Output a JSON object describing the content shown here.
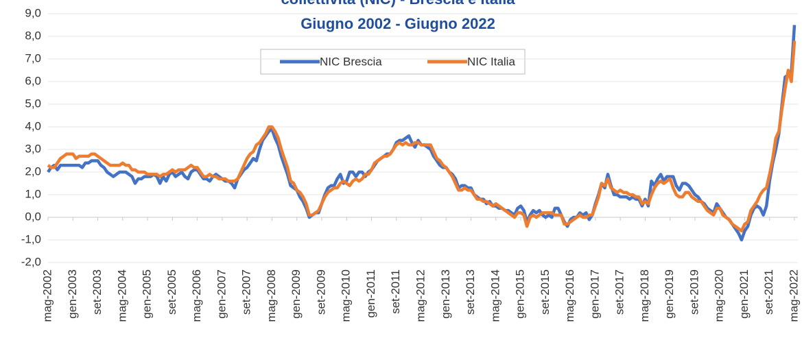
{
  "chart_data": {
    "type": "line",
    "title": "collettività (NIC) - Brescia e Italia",
    "subtitle": "Giugno 2002 - Giugno 2022",
    "categories": [
      "mag-2002",
      null,
      null,
      null,
      null,
      null,
      null,
      null,
      "gen-2003",
      null,
      null,
      null,
      null,
      null,
      null,
      null,
      "set-2003",
      null,
      null,
      null,
      null,
      null,
      null,
      null,
      "mag-2004",
      null,
      null,
      null,
      null,
      null,
      null,
      null,
      "gen-2005",
      null,
      null,
      null,
      null,
      null,
      null,
      null,
      "set-2005",
      null,
      null,
      null,
      null,
      null,
      null,
      null,
      "mag-2006",
      null,
      null,
      null,
      null,
      null,
      null,
      null,
      "gen-2007",
      null,
      null,
      null,
      null,
      null,
      null,
      null,
      "set-2007",
      null,
      null,
      null,
      null,
      null,
      null,
      null,
      "mag-2008",
      null,
      null,
      null,
      null,
      null,
      null,
      null,
      "gen-2009",
      null,
      null,
      null,
      null,
      null,
      null,
      null,
      "set-2009",
      null,
      null,
      null,
      null,
      null,
      null,
      null,
      "mag-2010",
      null,
      null,
      null,
      null,
      null,
      null,
      null,
      "gen-2011",
      null,
      null,
      null,
      null,
      null,
      null,
      null,
      "set-2011",
      null,
      null,
      null,
      null,
      null,
      null,
      null,
      "mag-2012",
      null,
      null,
      null,
      null,
      null,
      null,
      null,
      "gen-2013",
      null,
      null,
      null,
      null,
      null,
      null,
      null,
      "set-2013",
      null,
      null,
      null,
      null,
      null,
      null,
      null,
      "mag-2014",
      null,
      null,
      null,
      null,
      null,
      null,
      null,
      "gen-2015",
      null,
      null,
      null,
      null,
      null,
      null,
      null,
      "set-2015",
      null,
      null,
      null,
      null,
      null,
      null,
      null,
      "mag-2016",
      null,
      null,
      null,
      null,
      null,
      null,
      null,
      "gen-2017",
      null,
      null,
      null,
      null,
      null,
      null,
      null,
      "set-2017",
      null,
      null,
      null,
      null,
      null,
      null,
      null,
      "mag-2018",
      null,
      null,
      null,
      null,
      null,
      null,
      null,
      "gen-2019",
      null,
      null,
      null,
      null,
      null,
      null,
      null,
      "set-2019",
      null,
      null,
      null,
      null,
      null,
      null,
      null,
      "mag-2020",
      null,
      null,
      null,
      null,
      null,
      null,
      null,
      "gen-2021",
      null,
      null,
      null,
      null,
      null,
      null,
      null,
      "set-2021",
      null,
      null,
      null,
      null,
      null,
      null,
      null,
      "mag-2022"
    ],
    "series": [
      {
        "name": "NIC Brescia",
        "color": "#4472c4",
        "values": [
          2.0,
          2.2,
          2.3,
          2.1,
          2.3,
          2.3,
          2.3,
          2.3,
          2.3,
          2.3,
          2.3,
          2.2,
          2.4,
          2.4,
          2.5,
          2.5,
          2.5,
          2.3,
          2.2,
          2.0,
          1.9,
          1.8,
          1.9,
          2.0,
          2.0,
          2.0,
          1.9,
          1.8,
          1.5,
          1.7,
          1.7,
          1.8,
          1.8,
          1.8,
          1.9,
          1.8,
          1.5,
          1.8,
          1.6,
          1.9,
          2.0,
          1.8,
          1.9,
          2.0,
          1.8,
          1.7,
          2.0,
          2.1,
          2.1,
          1.9,
          1.7,
          1.7,
          1.6,
          1.8,
          1.9,
          1.8,
          1.7,
          1.6,
          1.6,
          1.5,
          1.3,
          1.7,
          1.9,
          2.1,
          2.2,
          2.4,
          2.6,
          2.5,
          3.0,
          3.4,
          3.6,
          3.8,
          3.9,
          3.5,
          3.2,
          2.7,
          2.3,
          1.9,
          1.4,
          1.3,
          1.2,
          0.9,
          0.7,
          0.4,
          0.0,
          0.1,
          0.2,
          0.2,
          0.6,
          1.0,
          1.3,
          1.4,
          1.4,
          1.7,
          1.9,
          1.5,
          1.6,
          2.0,
          2.0,
          1.8,
          2.0,
          2.0,
          1.8,
          2.0,
          2.1,
          2.3,
          2.5,
          2.6,
          2.7,
          2.8,
          2.8,
          3.0,
          3.3,
          3.4,
          3.4,
          3.5,
          3.6,
          3.3,
          3.1,
          3.4,
          3.2,
          3.2,
          3.1,
          3.0,
          2.7,
          2.5,
          2.3,
          2.2,
          2.2,
          2.0,
          1.9,
          1.7,
          1.3,
          1.4,
          1.4,
          1.3,
          1.3,
          1.0,
          0.9,
          0.8,
          0.8,
          0.6,
          0.7,
          0.5,
          0.5,
          0.4,
          0.4,
          0.3,
          0.3,
          0.2,
          0.1,
          0.4,
          0.5,
          0.3,
          -0.2,
          0.1,
          0.3,
          0.2,
          0.3,
          0.1,
          0.0,
          0.1,
          0.0,
          0.4,
          0.4,
          0.1,
          -0.2,
          -0.4,
          -0.1,
          0.0,
          0.0,
          0.2,
          0.1,
          0.2,
          -0.1,
          0.1,
          0.6,
          1.0,
          1.5,
          1.3,
          1.9,
          1.4,
          1.0,
          1.0,
          0.9,
          0.9,
          0.9,
          0.8,
          0.9,
          0.8,
          0.8,
          0.5,
          0.8,
          0.5,
          1.6,
          1.4,
          1.7,
          1.9,
          1.6,
          1.8,
          1.8,
          1.8,
          1.4,
          1.2,
          1.5,
          1.5,
          1.4,
          1.2,
          1.0,
          0.9,
          0.7,
          0.6,
          0.4,
          0.3,
          0.2,
          0.6,
          0.4,
          0.2,
          0.0,
          -0.1,
          -0.3,
          -0.5,
          -0.7,
          -1.0,
          -0.6,
          -0.4,
          0.1,
          0.4,
          0.5,
          0.4,
          0.1,
          0.5,
          1.6,
          2.4,
          3.0,
          3.7,
          5.0,
          6.2,
          6.3,
          6.4,
          8.5
        ]
      },
      {
        "name": "NIC  Italia",
        "color": "#ed7d31",
        "values": [
          2.3,
          2.2,
          2.2,
          2.4,
          2.6,
          2.7,
          2.8,
          2.8,
          2.8,
          2.6,
          2.7,
          2.7,
          2.7,
          2.7,
          2.8,
          2.8,
          2.7,
          2.6,
          2.5,
          2.4,
          2.3,
          2.3,
          2.3,
          2.3,
          2.4,
          2.3,
          2.3,
          2.1,
          2.1,
          2.0,
          2.0,
          2.0,
          1.9,
          1.9,
          1.9,
          1.9,
          1.8,
          1.9,
          1.9,
          2.0,
          2.1,
          2.0,
          2.1,
          2.1,
          2.1,
          2.2,
          2.3,
          2.2,
          2.2,
          2.0,
          1.8,
          1.8,
          1.9,
          1.8,
          1.8,
          1.7,
          1.7,
          1.7,
          1.6,
          1.6,
          1.6,
          1.7,
          2.0,
          2.3,
          2.6,
          2.8,
          2.9,
          3.2,
          3.3,
          3.5,
          3.7,
          4.0,
          4.0,
          3.8,
          3.5,
          3.0,
          2.6,
          2.2,
          1.6,
          1.5,
          1.2,
          1.1,
          0.9,
          0.6,
          0.1,
          0.1,
          0.2,
          0.3,
          0.6,
          0.9,
          1.1,
          1.2,
          1.3,
          1.3,
          1.5,
          1.6,
          1.5,
          1.4,
          1.6,
          1.7,
          1.6,
          1.7,
          1.9,
          1.9,
          2.1,
          2.4,
          2.5,
          2.6,
          2.7,
          2.7,
          2.8,
          3.0,
          3.2,
          3.3,
          3.2,
          3.3,
          3.2,
          3.2,
          3.3,
          3.3,
          3.2,
          3.2,
          3.2,
          3.2,
          2.9,
          2.6,
          2.5,
          2.3,
          2.2,
          2.0,
          1.8,
          1.5,
          1.2,
          1.2,
          1.3,
          1.2,
          1.2,
          1.0,
          0.8,
          0.8,
          0.7,
          0.7,
          0.6,
          0.5,
          0.6,
          0.5,
          0.4,
          0.3,
          0.2,
          0.1,
          0.0,
          0.2,
          0.2,
          0.1,
          -0.4,
          0.0,
          0.1,
          0.0,
          0.1,
          0.2,
          0.2,
          0.2,
          0.2,
          0.1,
          0.1,
          0.1,
          -0.3,
          -0.3,
          -0.2,
          -0.1,
          0.0,
          0.1,
          0.0,
          0.0,
          0.1,
          0.1,
          0.5,
          0.9,
          1.5,
          1.4,
          1.7,
          1.3,
          1.2,
          1.1,
          1.2,
          1.1,
          1.1,
          1.0,
          1.0,
          0.9,
          0.9,
          0.6,
          0.7,
          0.6,
          1.0,
          1.3,
          1.5,
          1.6,
          1.5,
          1.6,
          1.7,
          1.3,
          1.0,
          0.9,
          0.9,
          1.1,
          1.1,
          0.9,
          0.8,
          0.7,
          0.7,
          0.5,
          0.3,
          0.2,
          0.1,
          0.4,
          0.4,
          0.1,
          0.0,
          -0.1,
          -0.3,
          -0.4,
          -0.5,
          -0.6,
          -0.3,
          -0.2,
          0.3,
          0.5,
          0.7,
          1.0,
          1.2,
          1.3,
          1.9,
          2.6,
          3.5,
          3.8,
          4.8,
          5.7,
          6.5,
          6.0,
          7.8
        ]
      }
    ],
    "ylim": [
      -2,
      9
    ],
    "yticks": [
      {
        "value": -2,
        "label": "-2,0"
      },
      {
        "value": -1,
        "label": "-1,0"
      },
      {
        "value": 0,
        "label": "0,0"
      },
      {
        "value": 1,
        "label": "1,0"
      },
      {
        "value": 2,
        "label": "2,0"
      },
      {
        "value": 3,
        "label": "3,0"
      },
      {
        "value": 4,
        "label": "4,0"
      },
      {
        "value": 5,
        "label": "5,0"
      },
      {
        "value": 6,
        "label": "6,0"
      },
      {
        "value": 7,
        "label": "7,0"
      },
      {
        "value": 8,
        "label": "8,0"
      },
      {
        "value": 9,
        "label": "9,0"
      }
    ],
    "grid": true,
    "legend": "top"
  }
}
